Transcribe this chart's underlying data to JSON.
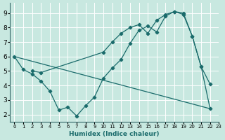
{
  "xlabel": "Humidex (Indice chaleur)",
  "xlim": [
    -0.5,
    23
  ],
  "ylim": [
    1.5,
    9.7
  ],
  "yticks": [
    2,
    3,
    4,
    5,
    6,
    7,
    8,
    9
  ],
  "xticks": [
    0,
    1,
    2,
    3,
    4,
    5,
    6,
    7,
    8,
    9,
    10,
    11,
    12,
    13,
    14,
    15,
    16,
    17,
    18,
    19,
    20,
    21,
    22,
    23
  ],
  "bg_color": "#c8e8e0",
  "line_color": "#1a6b6b",
  "grid_color": "#ffffff",
  "lines": [
    {
      "x": [
        0,
        1,
        2,
        3,
        4,
        5,
        6,
        7,
        8,
        9,
        10,
        11,
        12,
        13,
        14,
        15,
        16,
        17,
        18,
        19,
        20,
        21,
        22
      ],
      "y": [
        6.0,
        5.1,
        4.8,
        4.3,
        3.6,
        2.3,
        2.5,
        1.9,
        2.6,
        3.2,
        4.5,
        5.2,
        5.8,
        6.9,
        7.8,
        8.1,
        7.7,
        8.8,
        9.1,
        9.0,
        7.4,
        5.3,
        4.1
      ]
    },
    {
      "x": [
        2,
        3,
        10,
        11,
        12,
        13,
        14,
        15,
        16,
        17,
        18,
        19,
        20,
        21,
        22
      ],
      "y": [
        5.0,
        4.9,
        6.3,
        7.0,
        7.6,
        8.0,
        8.2,
        7.6,
        8.5,
        8.9,
        9.1,
        8.9,
        7.4,
        5.3,
        2.4
      ]
    },
    {
      "x": [
        0,
        22
      ],
      "y": [
        6.0,
        2.4
      ]
    }
  ]
}
